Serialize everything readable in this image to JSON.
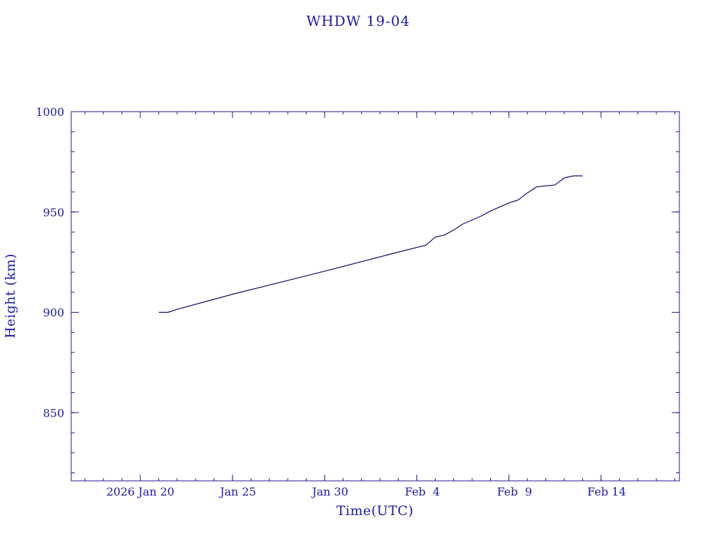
{
  "colors": {
    "axis": "#1a1a8c",
    "text": "#1a1aa6",
    "line": "#0b0b6e",
    "background": "#ffffff"
  },
  "chart_data": {
    "type": "line",
    "title": "WHDW 19-04",
    "xlabel": "Time(UTC)",
    "ylabel": "Height (km)",
    "x_tick_labels": [
      "2026 Jan 20",
      "Jan 25",
      "Jan 30",
      "Feb  4",
      "Feb  9",
      "Feb 14"
    ],
    "x_tick_dates": [
      "2026-01-20",
      "2026-01-25",
      "2026-01-30",
      "2026-02-04",
      "2026-02-09",
      "2026-02-14"
    ],
    "xlim": [
      "2026-01-16T06:00",
      "2026-02-18T06:00"
    ],
    "y_tick_labels": [
      "850",
      "900",
      "950",
      "1000"
    ],
    "y_ticks": [
      850,
      900,
      950,
      1000
    ],
    "ylim": [
      816,
      1000
    ],
    "grid": false,
    "series": [
      {
        "x": [
          "2026-01-21T00:00",
          "2026-01-21T12:00",
          "2026-01-22T00:00",
          "2026-01-25T00:00",
          "2026-01-30T00:00",
          "2026-02-03T00:00",
          "2026-02-04T12:00",
          "2026-02-05T00:00",
          "2026-02-05T12:00",
          "2026-02-06T00:00",
          "2026-02-06T12:00",
          "2026-02-07T00:00",
          "2026-02-07T12:00",
          "2026-02-08T00:00",
          "2026-02-08T12:00",
          "2026-02-09T00:00",
          "2026-02-09T12:00",
          "2026-02-10T00:00",
          "2026-02-10T12:00",
          "2026-02-11T00:00",
          "2026-02-11T12:00",
          "2026-02-12T00:00",
          "2026-02-12T12:00",
          "2026-02-13T00:00"
        ],
        "y": [
          900,
          900,
          901.5,
          909,
          920.5,
          930,
          933.5,
          937.5,
          938.5,
          941,
          944,
          946,
          948,
          950.5,
          952.5,
          954.5,
          956,
          959.5,
          962.5,
          963,
          963.5,
          967,
          968,
          968
        ]
      }
    ]
  }
}
